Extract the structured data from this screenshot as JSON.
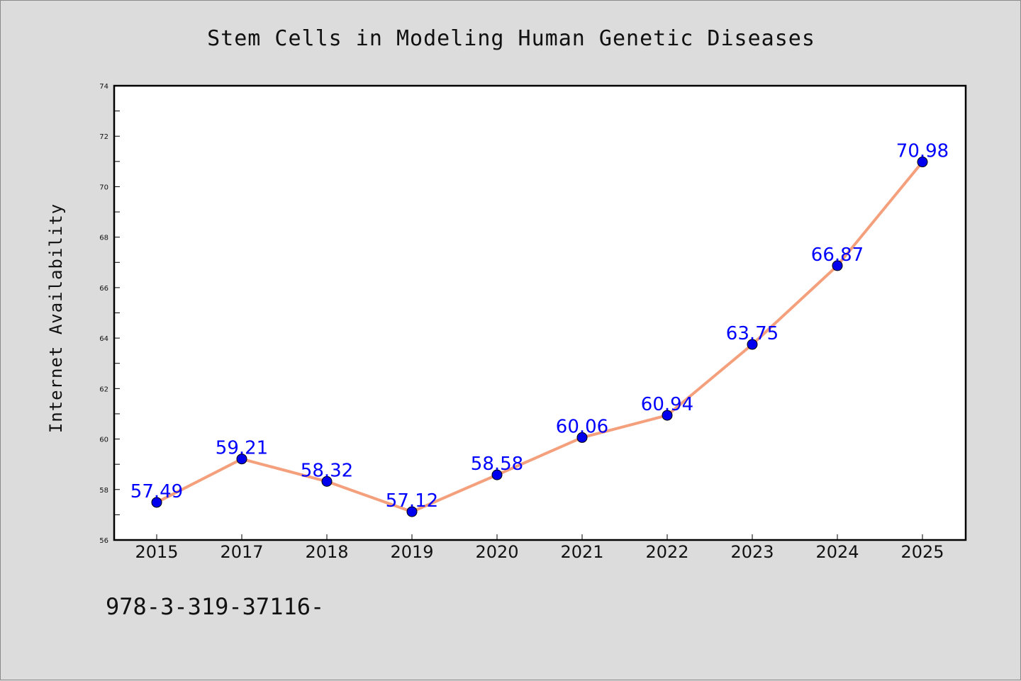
{
  "chart_data": {
    "type": "line",
    "title": "Stem Cells in Modeling Human Genetic Diseases",
    "xlabel": "",
    "ylabel": "Internet Availability",
    "categories": [
      "2015",
      "2017",
      "2018",
      "2019",
      "2020",
      "2021",
      "2022",
      "2023",
      "2024",
      "2025"
    ],
    "series": [
      {
        "values": [
          57.49,
          59.21,
          58.32,
          57.12,
          58.58,
          60.06,
          60.94,
          63.75,
          66.87,
          70.98
        ],
        "data_labels": [
          "57.49",
          "59.21",
          "58.32",
          "57.12",
          "58.58",
          "60.06",
          "60.94",
          "63.75",
          "66.87",
          "70.98"
        ]
      }
    ],
    "ylim": [
      56,
      74
    ],
    "yticks": [
      "56",
      "58",
      "60",
      "62",
      "64",
      "66",
      "68",
      "70",
      "72",
      "74"
    ],
    "grid": false,
    "legend": "none",
    "colors": {
      "line": "#f4a07c",
      "marker": "#0000ee",
      "data_label": "#0000ff",
      "background": "#dcdcdc",
      "plot_background": "#ffffff"
    }
  },
  "footer": {
    "isbn_text": "978-3-319-37116-"
  }
}
